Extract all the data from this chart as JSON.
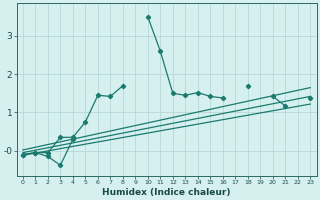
{
  "xlabel": "Humidex (Indice chaleur)",
  "bg_color": "#d6f0f0",
  "line_color": "#1a7a6e",
  "grid_color": "#b8d8d8",
  "x": [
    0,
    1,
    2,
    3,
    4,
    5,
    6,
    7,
    8,
    9,
    10,
    11,
    12,
    13,
    14,
    15,
    16,
    17,
    18,
    19,
    20,
    21,
    22,
    23
  ],
  "series1_segments": [
    [
      [
        0,
        -0.1
      ],
      [
        1,
        -0.05
      ],
      [
        2,
        -0.05
      ],
      [
        3,
        0.35
      ],
      [
        4,
        0.35
      ],
      [
        5,
        0.75
      ],
      [
        6,
        1.45
      ],
      [
        7,
        1.42
      ],
      [
        8,
        1.7
      ]
    ],
    [
      [
        10,
        3.5
      ],
      [
        11,
        2.6
      ],
      [
        12,
        1.5
      ],
      [
        13,
        1.45
      ],
      [
        14,
        1.52
      ],
      [
        15,
        1.42
      ],
      [
        16,
        1.38
      ]
    ],
    [
      [
        18,
        1.68
      ]
    ],
    [
      [
        20,
        1.42
      ],
      [
        21,
        1.17
      ]
    ],
    [
      [
        23,
        1.38
      ]
    ]
  ],
  "series2_segments": [
    [
      [
        0,
        -0.1
      ],
      [
        1,
        -0.05
      ],
      [
        2,
        -0.15
      ],
      [
        3,
        -0.38
      ],
      [
        4,
        0.3
      ]
    ]
  ],
  "reg_lines": [
    {
      "x": [
        0,
        23
      ],
      "y": [
        -0.12,
        1.22
      ]
    },
    {
      "x": [
        0,
        23
      ],
      "y": [
        -0.05,
        1.42
      ]
    },
    {
      "x": [
        0,
        23
      ],
      "y": [
        0.02,
        1.65
      ]
    }
  ],
  "ylim": [
    -0.65,
    3.85
  ],
  "xlim": [
    -0.5,
    23.5
  ],
  "yticks": [
    0,
    1,
    2,
    3
  ],
  "ytick_labels": [
    "-0",
    "1",
    "2",
    "3"
  ],
  "xticks": [
    0,
    1,
    2,
    3,
    4,
    5,
    6,
    7,
    8,
    9,
    10,
    11,
    12,
    13,
    14,
    15,
    16,
    17,
    18,
    19,
    20,
    21,
    22,
    23
  ]
}
